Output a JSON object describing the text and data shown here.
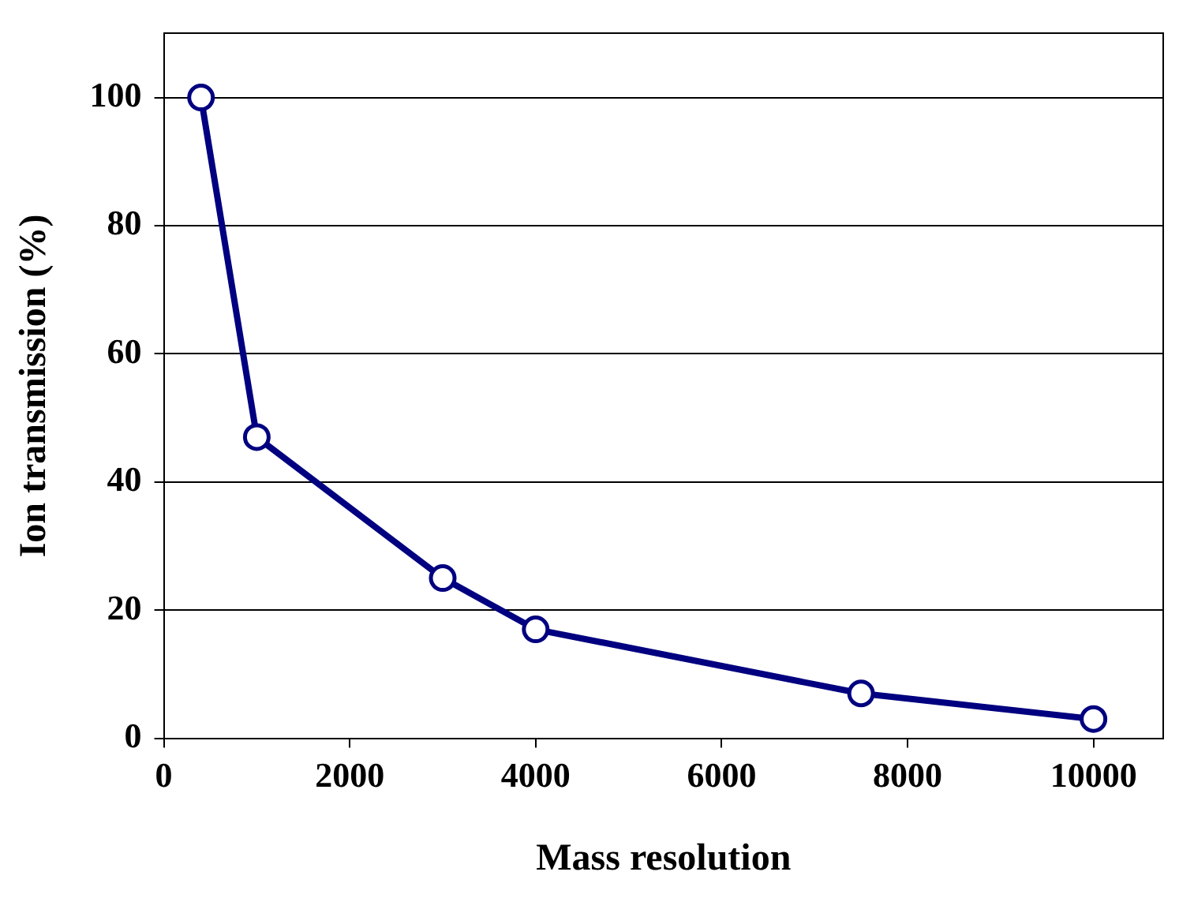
{
  "chart_data": {
    "type": "line",
    "xlabel": "Mass resolution",
    "ylabel": "Ion transmission (%)",
    "x": [
      400,
      1000,
      3000,
      4000,
      7500,
      10000
    ],
    "series": [
      {
        "color": "#000080",
        "values": [
          100,
          47,
          25,
          17,
          7,
          3
        ]
      }
    ],
    "xlim": [
      0,
      10750
    ],
    "xticks": [
      0,
      2000,
      4000,
      6000,
      8000,
      10000
    ],
    "ylim": [
      0,
      110
    ],
    "yticks": [
      0,
      20,
      40,
      60,
      80,
      100
    ],
    "grid": "y",
    "legend": false,
    "marker": "circle",
    "line_style": "solid"
  }
}
